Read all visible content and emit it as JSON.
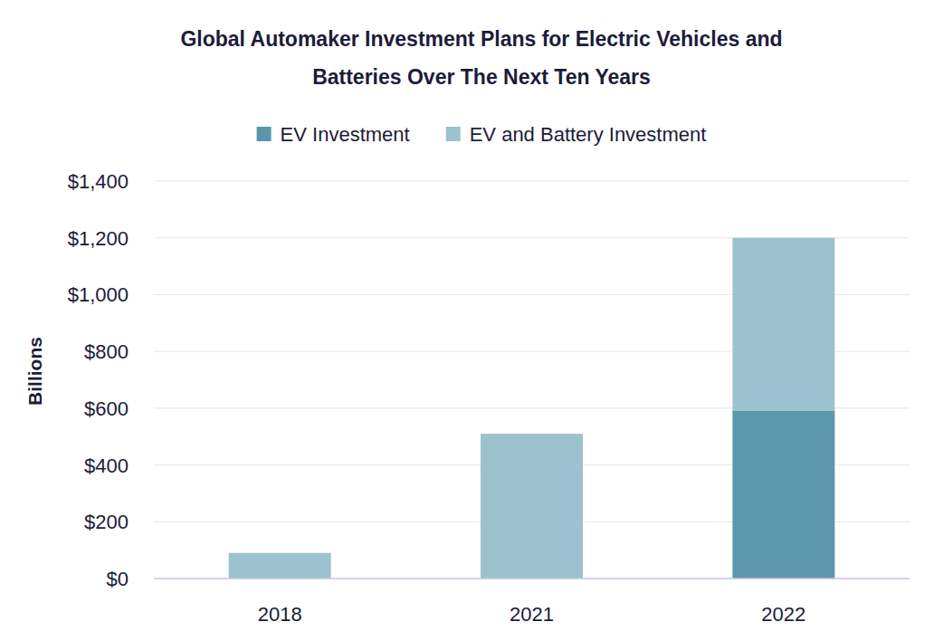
{
  "chart_data": {
    "type": "bar",
    "title": "Global Automaker Investment Plans for Electric Vehicles and Batteries Over The Next Ten Years",
    "y_label": "Billions",
    "categories": [
      "2018",
      "2021",
      "2022"
    ],
    "series": [
      {
        "name": "EV Investment",
        "color": "#5b97a8",
        "values": [
          null,
          null,
          590
        ]
      },
      {
        "name": "EV and Battery Investment",
        "color": "#9bc2ce",
        "values": [
          90,
          510,
          610
        ]
      }
    ],
    "stacked": true,
    "ylim": [
      0,
      1400
    ],
    "yticks": [
      {
        "value": 0,
        "label": "$0"
      },
      {
        "value": 200,
        "label": "$200"
      },
      {
        "value": 400,
        "label": "$400"
      },
      {
        "value": 600,
        "label": "$600"
      },
      {
        "value": 800,
        "label": "$800"
      },
      {
        "value": 1000,
        "label": "$1,000"
      },
      {
        "value": 1200,
        "label": "$1,200"
      },
      {
        "value": 1400,
        "label": "$1,400"
      }
    ],
    "grid": true,
    "legend": "top"
  }
}
